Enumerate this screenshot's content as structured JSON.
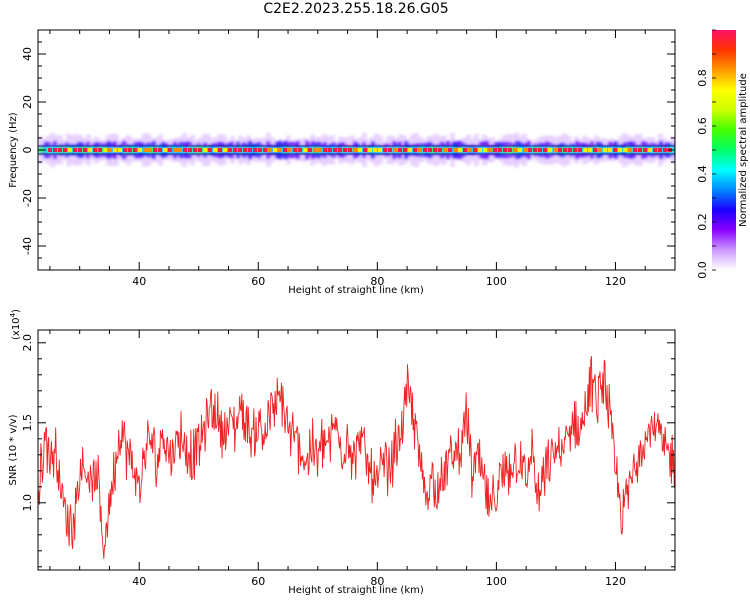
{
  "title": "C2E2.2023.255.18.26.G05",
  "chart_data": [
    {
      "type": "heatmap",
      "xlabel": "Height of straight line (km)",
      "ylabel": "Frequency (Hz)",
      "xlim": [
        23,
        130
      ],
      "ylim": [
        -50,
        50
      ],
      "x_ticks": [
        40,
        60,
        80,
        100,
        120
      ],
      "y_ticks": [
        -40,
        -20,
        0,
        20,
        40
      ],
      "signal_band_hz": [
        -6,
        6
      ],
      "peak_frequency_hz": 0,
      "colorbar": {
        "label": "Normalized spectral amplitude",
        "range": [
          0,
          1
        ],
        "ticks": [
          "0.0",
          "0.2",
          "0.4",
          "0.6",
          "0.8"
        ],
        "colormap": [
          "#ffffff",
          "#cc99ff",
          "#8a00ff",
          "#1a00ff",
          "#0088ff",
          "#00ffff",
          "#00ff66",
          "#44ff00",
          "#ccff00",
          "#ffff00",
          "#ff9900",
          "#ff3300",
          "#ff1166"
        ]
      }
    },
    {
      "type": "line",
      "xlabel": "Height of straight line (km)",
      "ylabel": "SNR (10 * v/v)",
      "multiplier_label": "(x10",
      "multiplier_exponent": "4",
      "multiplier_close": ")",
      "xlim": [
        23,
        130
      ],
      "ylim": [
        0.58,
        2.08
      ],
      "x_ticks": [
        40,
        60,
        80,
        100,
        120
      ],
      "y_ticks": [
        "1.0",
        "1.5",
        "2.0"
      ],
      "color": "#ee2222",
      "series": [
        {
          "x": [
            23,
            24,
            25,
            26,
            27,
            28,
            29,
            30,
            31,
            32,
            33,
            34,
            35,
            36,
            37,
            38,
            39,
            40,
            41,
            42,
            43,
            44,
            45,
            46,
            47,
            48,
            49,
            50,
            51,
            52,
            53,
            54,
            55,
            56,
            57,
            58,
            59,
            60,
            61,
            62,
            63,
            64,
            65,
            66,
            67,
            68,
            69,
            70,
            71,
            72,
            73,
            74,
            75,
            76,
            77,
            78,
            79,
            80,
            81,
            82,
            83,
            84,
            85,
            86,
            87,
            88,
            89,
            90,
            91,
            92,
            93,
            94,
            95,
            96,
            97,
            98,
            99,
            100,
            101,
            102,
            103,
            104,
            105,
            106,
            107,
            108,
            109,
            110,
            111,
            112,
            113,
            114,
            115,
            116,
            117,
            118,
            119,
            120,
            121,
            122,
            123,
            124,
            125,
            126,
            127,
            128,
            129,
            130
          ],
          "y": [
            0.98,
            1.42,
            1.3,
            1.32,
            1.05,
            0.85,
            0.9,
            1.2,
            1.25,
            1.1,
            1.15,
            0.72,
            1.0,
            1.25,
            1.45,
            1.3,
            1.2,
            1.1,
            1.3,
            1.4,
            1.25,
            1.45,
            1.3,
            1.35,
            1.45,
            1.3,
            1.3,
            1.35,
            1.45,
            1.6,
            1.55,
            1.45,
            1.5,
            1.45,
            1.6,
            1.5,
            1.4,
            1.5,
            1.45,
            1.55,
            1.6,
            1.65,
            1.45,
            1.4,
            1.35,
            1.25,
            1.35,
            1.3,
            1.4,
            1.35,
            1.5,
            1.3,
            1.45,
            1.25,
            1.4,
            1.3,
            1.2,
            1.1,
            1.25,
            1.2,
            1.35,
            1.45,
            1.7,
            1.55,
            1.3,
            1.05,
            1.15,
            1.1,
            1.15,
            1.25,
            1.3,
            1.35,
            1.55,
            1.15,
            1.3,
            1.1,
            0.95,
            1.05,
            1.15,
            1.2,
            1.25,
            1.3,
            1.1,
            1.35,
            1.0,
            1.15,
            1.25,
            1.35,
            1.3,
            1.4,
            1.5,
            1.45,
            1.6,
            1.75,
            1.6,
            1.8,
            1.55,
            1.2,
            0.9,
            1.05,
            1.2,
            1.35,
            1.4,
            1.5,
            1.45,
            1.35,
            1.3,
            1.25
          ]
        }
      ]
    }
  ]
}
